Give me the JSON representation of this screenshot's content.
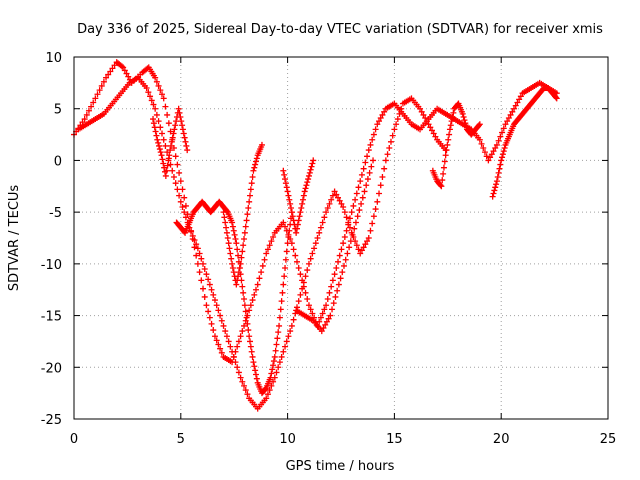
{
  "chart_data": {
    "type": "scatter",
    "title": "Day 336 of 2025, Sidereal Day-to-day VTEC variation (SDTVAR) for receiver xmis",
    "xlabel": "GPS time / hours",
    "ylabel": "SDTVAR / TECUs",
    "xlim": [
      0,
      25
    ],
    "ylim": [
      -25,
      10
    ],
    "xticks": [
      0,
      5,
      10,
      15,
      20,
      25
    ],
    "yticks": [
      -25,
      -20,
      -15,
      -10,
      -5,
      0,
      5,
      10
    ],
    "grid": true,
    "legend": "none",
    "marker": "plus",
    "color": "#ff0000",
    "series": [
      {
        "x": [
          0.0,
          0.5,
          1.0,
          1.5,
          2.0,
          2.3,
          2.7,
          3.2,
          3.5,
          3.8,
          4.2,
          4.6,
          5.0,
          5.4,
          5.8,
          6.2,
          6.6,
          7.0,
          7.4,
          7.8,
          8.2,
          8.6,
          9.0,
          9.4,
          9.8,
          10.2,
          10.6,
          11.0,
          11.4,
          11.8,
          12.2,
          12.6,
          13.0,
          13.4,
          13.8,
          14.2,
          14.6,
          15.0,
          15.4,
          15.8,
          16.2,
          16.6,
          17.0,
          17.4,
          17.8,
          18.2,
          18.6,
          19.0,
          19.4,
          19.8,
          20.2,
          20.6,
          21.0,
          21.4,
          21.8,
          22.2,
          22.6
        ],
        "y": [
          2.5,
          4.0,
          6.0,
          8.0,
          9.5,
          9.0,
          7.5,
          8.5,
          9.0,
          8.0,
          6.0,
          2.0,
          -2.0,
          -6.0,
          -10.0,
          -14.0,
          -17.0,
          -19.0,
          -19.5,
          -17.0,
          -14.5,
          -12.0,
          -9.0,
          -7.0,
          -6.0,
          -8.0,
          -11.0,
          -14.0,
          -16.0,
          -14.0,
          -11.0,
          -8.0,
          -5.0,
          -2.0,
          1.0,
          3.5,
          5.0,
          5.5,
          4.5,
          3.5,
          3.0,
          4.0,
          5.0,
          4.5,
          4.0,
          3.5,
          3.0,
          2.0,
          0.0,
          1.5,
          3.5,
          5.0,
          6.5,
          7.0,
          7.5,
          7.0,
          6.5
        ]
      },
      {
        "x": [
          0.2,
          0.6,
          1.0,
          1.4,
          1.8,
          2.2,
          2.6,
          3.0,
          3.4,
          3.8,
          4.2,
          4.6,
          5.0,
          5.4,
          5.8,
          6.2,
          6.6,
          7.0,
          7.4,
          7.8,
          8.2,
          8.6,
          9.0,
          9.4,
          9.8,
          10.2,
          10.6,
          11.0,
          11.4,
          11.8,
          12.2,
          12.6,
          13.0,
          13.4,
          13.8,
          14.2,
          14.6,
          15.0,
          15.4,
          15.8,
          16.2,
          16.6,
          17.0,
          17.4
        ],
        "y": [
          3.0,
          3.5,
          4.0,
          4.5,
          5.5,
          6.5,
          7.5,
          8.0,
          7.0,
          5.0,
          2.0,
          -1.0,
          -4.0,
          -6.5,
          -8.5,
          -11.0,
          -13.5,
          -16.0,
          -18.5,
          -21.0,
          -23.0,
          -24.0,
          -23.0,
          -21.0,
          -18.5,
          -16.0,
          -13.0,
          -10.0,
          -7.5,
          -5.0,
          -3.0,
          -4.5,
          -7.0,
          -9.0,
          -7.5,
          -4.0,
          0.0,
          3.0,
          5.5,
          6.0,
          5.0,
          3.5,
          2.0,
          1.0
        ]
      },
      {
        "x": [
          4.8,
          5.0,
          5.2,
          5.4,
          5.6,
          5.8,
          6.0,
          6.2,
          6.4,
          6.6,
          6.8,
          7.0,
          7.2,
          7.4,
          7.6,
          7.8,
          8.0,
          8.2,
          8.4,
          8.6,
          8.8,
          9.0,
          9.2,
          9.4,
          9.6,
          9.8,
          10.0,
          10.2
        ],
        "y": [
          -6.0,
          -6.5,
          -7.0,
          -6.0,
          -5.0,
          -4.5,
          -4.0,
          -4.5,
          -5.0,
          -4.5,
          -4.0,
          -4.5,
          -5.0,
          -6.0,
          -8.0,
          -11.0,
          -14.0,
          -17.0,
          -19.5,
          -21.5,
          -22.5,
          -22.0,
          -21.0,
          -19.0,
          -16.0,
          -12.0,
          -8.0,
          -5.0
        ]
      },
      {
        "x": [
          9.8,
          10.0,
          10.2,
          10.4,
          10.6,
          10.8,
          11.0,
          11.2
        ],
        "y": [
          -1.0,
          -3.0,
          -5.0,
          -7.0,
          -5.0,
          -3.0,
          -1.5,
          0.0
        ]
      },
      {
        "x": [
          10.4,
          10.8,
          11.2,
          11.6,
          12.0,
          12.4,
          12.8,
          13.2,
          13.6,
          14.0
        ],
        "y": [
          -14.5,
          -15.0,
          -15.5,
          -16.5,
          -15.0,
          -12.0,
          -9.0,
          -6.0,
          -3.0,
          0.0
        ]
      },
      {
        "x": [
          16.8,
          17.0,
          17.2,
          17.4,
          17.6,
          17.8,
          18.0,
          18.2,
          18.4,
          18.6,
          18.8,
          19.0
        ],
        "y": [
          -1.0,
          -2.0,
          -2.5,
          0.5,
          3.0,
          5.0,
          5.5,
          4.5,
          3.0,
          2.5,
          3.0,
          3.5
        ]
      },
      {
        "x": [
          19.6,
          19.8,
          20.0,
          20.2,
          20.4,
          20.6,
          20.8,
          21.0,
          21.2,
          21.4,
          21.6,
          21.8,
          22.0,
          22.2,
          22.4,
          22.6
        ],
        "y": [
          -3.5,
          -2.0,
          0.0,
          1.5,
          2.5,
          3.5,
          4.0,
          4.5,
          5.0,
          5.5,
          6.0,
          6.5,
          7.0,
          7.0,
          6.5,
          6.0
        ]
      },
      {
        "x": [
          7.0,
          7.2,
          7.4,
          7.6,
          7.8,
          8.0,
          8.2,
          8.4,
          8.6,
          8.8
        ],
        "y": [
          -5.0,
          -7.5,
          -10.0,
          -12.0,
          -10.0,
          -7.0,
          -4.0,
          -1.0,
          0.5,
          1.5
        ]
      },
      {
        "x": [
          3.7,
          3.9,
          4.1,
          4.3,
          4.5,
          4.7,
          4.9,
          5.1,
          5.3
        ],
        "y": [
          4.0,
          2.0,
          0.5,
          -1.5,
          1.0,
          3.0,
          5.0,
          3.0,
          1.0
        ]
      }
    ]
  }
}
